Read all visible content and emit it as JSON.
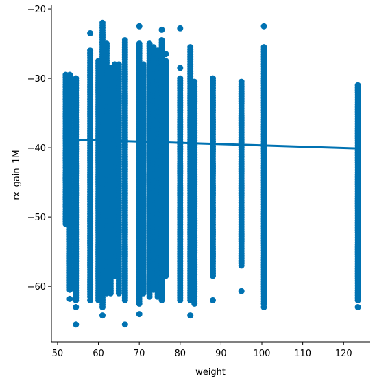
{
  "chart_data": {
    "type": "scatter",
    "title": "",
    "xlabel": "weight",
    "ylabel": "rx_gain_1M",
    "xlim": [
      48.5,
      126.5
    ],
    "ylim": [
      -68,
      -19.5
    ],
    "xticks": [
      50,
      60,
      70,
      80,
      90,
      100,
      110,
      120
    ],
    "yticks": [
      -20,
      -30,
      -40,
      -50,
      -60
    ],
    "xtick_labels": [
      "50",
      "60",
      "70",
      "80",
      "90",
      "100",
      "110",
      "120"
    ],
    "ytick_labels": [
      "−20",
      "−30",
      "−40",
      "−50",
      "−60"
    ],
    "grid": false,
    "legend": "none",
    "point_color": "#0072b2",
    "line_color": "#0072b2",
    "regression_line": {
      "x": [
        52,
        123.5
      ],
      "y": [
        -38.8,
        -40.1
      ]
    },
    "columns": [
      {
        "x": 52.0,
        "ymin": -51.0,
        "ymax": -29.5,
        "outliers": [
          -44.5,
          -48.5
        ]
      },
      {
        "x": 53.0,
        "ymin": -60.5,
        "ymax": -29.5,
        "outliers": [
          -61.8
        ]
      },
      {
        "x": 54.5,
        "ymin": -62.0,
        "ymax": -30.0,
        "outliers": [
          -63.0,
          -65.5
        ]
      },
      {
        "x": 58.0,
        "ymin": -61.5,
        "ymax": -26.0,
        "outliers": [
          -23.5,
          -62.0
        ]
      },
      {
        "x": 60.0,
        "ymin": -62.0,
        "ymax": -27.5,
        "outliers": []
      },
      {
        "x": 61.0,
        "ymin": -63.0,
        "ymax": -22.0,
        "outliers": [
          -64.2
        ]
      },
      {
        "x": 62.0,
        "ymin": -61.0,
        "ymax": -25.0,
        "outliers": []
      },
      {
        "x": 63.0,
        "ymin": -61.0,
        "ymax": -28.5,
        "outliers": []
      },
      {
        "x": 64.0,
        "ymin": -58.5,
        "ymax": -28.0,
        "outliers": []
      },
      {
        "x": 65.0,
        "ymin": -61.0,
        "ymax": -28.0,
        "outliers": []
      },
      {
        "x": 66.5,
        "ymin": -62.0,
        "ymax": -24.5,
        "outliers": [
          -65.5
        ]
      },
      {
        "x": 70.0,
        "ymin": -62.5,
        "ymax": -25.0,
        "outliers": [
          -64.0,
          -22.5
        ]
      },
      {
        "x": 71.0,
        "ymin": -61.0,
        "ymax": -28.0,
        "outliers": []
      },
      {
        "x": 72.5,
        "ymin": -61.5,
        "ymax": -25.0,
        "outliers": []
      },
      {
        "x": 73.5,
        "ymin": -60.5,
        "ymax": -25.5,
        "outliers": []
      },
      {
        "x": 74.5,
        "ymin": -61.5,
        "ymax": -26.0,
        "outliers": []
      },
      {
        "x": 75.5,
        "ymin": -62.0,
        "ymax": -24.5,
        "outliers": [
          -23.0
        ]
      },
      {
        "x": 76.5,
        "ymin": -58.5,
        "ymax": -27.5,
        "outliers": [
          -26.5
        ]
      },
      {
        "x": 80.0,
        "ymin": -62.0,
        "ymax": -30.0,
        "outliers": [
          -22.8,
          -28.5
        ]
      },
      {
        "x": 82.5,
        "ymin": -62.0,
        "ymax": -25.5,
        "outliers": [
          -64.2
        ]
      },
      {
        "x": 83.5,
        "ymin": -62.5,
        "ymax": -30.5,
        "outliers": []
      },
      {
        "x": 88.0,
        "ymin": -58.5,
        "ymax": -30.0,
        "outliers": [
          -62.0
        ]
      },
      {
        "x": 95.0,
        "ymin": -57.0,
        "ymax": -30.5,
        "outliers": [
          -60.7
        ]
      },
      {
        "x": 100.5,
        "ymin": -62.5,
        "ymax": -25.5,
        "outliers": [
          -22.5,
          -63.0
        ]
      },
      {
        "x": 123.5,
        "ymin": -62.0,
        "ymax": -31.0,
        "outliers": [
          -63.0
        ]
      }
    ]
  }
}
